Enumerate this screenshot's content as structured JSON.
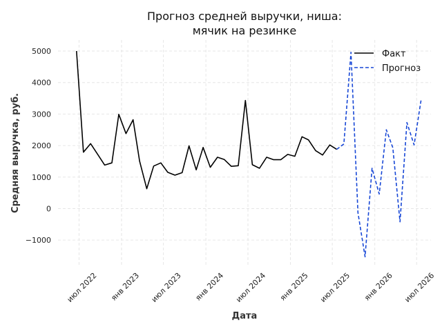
{
  "chart_data": {
    "type": "line",
    "title_lines": [
      "Прогноз средней выручки, ниша:",
      "мячик на резинке"
    ],
    "xlabel": "Дата",
    "ylabel": "Средняя выручка, руб.",
    "ylim": [
      -1850,
      5350
    ],
    "xlim": [
      "2022-04-01",
      "2026-09-01"
    ],
    "yticks": [
      -1000,
      0,
      1000,
      2000,
      3000,
      4000,
      5000
    ],
    "ytick_labels": [
      "−1000",
      "0",
      "1000",
      "2000",
      "3000",
      "4000",
      "5000"
    ],
    "xticks": [
      {
        "date": "2022-07-01",
        "label": "июл 2022"
      },
      {
        "date": "2023-01-01",
        "label": "янв 2023"
      },
      {
        "date": "2023-07-01",
        "label": "июл 2023"
      },
      {
        "date": "2024-01-01",
        "label": "янв 2024"
      },
      {
        "date": "2024-07-01",
        "label": "июл 2024"
      },
      {
        "date": "2025-01-01",
        "label": "янв 2025"
      },
      {
        "date": "2025-07-01",
        "label": "июл 2025"
      },
      {
        "date": "2026-01-01",
        "label": "янв 2026"
      },
      {
        "date": "2026-07-01",
        "label": "июл 2026"
      }
    ],
    "grid": true,
    "legend_position": "top-right",
    "series": [
      {
        "name": "Факт",
        "color": "#000000",
        "style": "solid",
        "points": [
          [
            "2022-06-20",
            5000
          ],
          [
            "2022-07-20",
            1790
          ],
          [
            "2022-08-20",
            2060
          ],
          [
            "2022-09-20",
            1720
          ],
          [
            "2022-10-20",
            1380
          ],
          [
            "2022-11-20",
            1450
          ],
          [
            "2022-12-20",
            2990
          ],
          [
            "2023-01-20",
            2380
          ],
          [
            "2023-02-20",
            2820
          ],
          [
            "2023-03-20",
            1510
          ],
          [
            "2023-04-20",
            630
          ],
          [
            "2023-05-20",
            1350
          ],
          [
            "2023-06-20",
            1450
          ],
          [
            "2023-07-20",
            1150
          ],
          [
            "2023-08-20",
            1060
          ],
          [
            "2023-09-20",
            1140
          ],
          [
            "2023-10-20",
            1990
          ],
          [
            "2023-11-20",
            1230
          ],
          [
            "2023-12-20",
            1940
          ],
          [
            "2024-01-20",
            1310
          ],
          [
            "2024-02-20",
            1630
          ],
          [
            "2024-03-20",
            1560
          ],
          [
            "2024-04-20",
            1340
          ],
          [
            "2024-05-20",
            1360
          ],
          [
            "2024-06-20",
            3430
          ],
          [
            "2024-07-20",
            1390
          ],
          [
            "2024-08-20",
            1280
          ],
          [
            "2024-09-20",
            1630
          ],
          [
            "2024-10-20",
            1550
          ],
          [
            "2024-11-20",
            1550
          ],
          [
            "2024-12-20",
            1720
          ],
          [
            "2025-01-20",
            1660
          ],
          [
            "2025-02-20",
            2280
          ],
          [
            "2025-03-20",
            2180
          ],
          [
            "2025-04-20",
            1840
          ],
          [
            "2025-05-20",
            1700
          ],
          [
            "2025-06-20",
            2020
          ],
          [
            "2025-07-20",
            1880
          ]
        ]
      },
      {
        "name": "Прогноз",
        "color": "#1646d6",
        "style": "dashed",
        "points": [
          [
            "2025-07-20",
            1880
          ],
          [
            "2025-08-20",
            2050
          ],
          [
            "2025-09-20",
            4960
          ],
          [
            "2025-10-20",
            -130
          ],
          [
            "2025-11-20",
            -1530
          ],
          [
            "2025-12-20",
            1280
          ],
          [
            "2026-01-20",
            460
          ],
          [
            "2026-02-20",
            2500
          ],
          [
            "2026-03-20",
            1930
          ],
          [
            "2026-04-20",
            -420
          ],
          [
            "2026-05-20",
            2730
          ],
          [
            "2026-06-20",
            2020
          ],
          [
            "2026-07-20",
            3430
          ]
        ]
      }
    ]
  }
}
